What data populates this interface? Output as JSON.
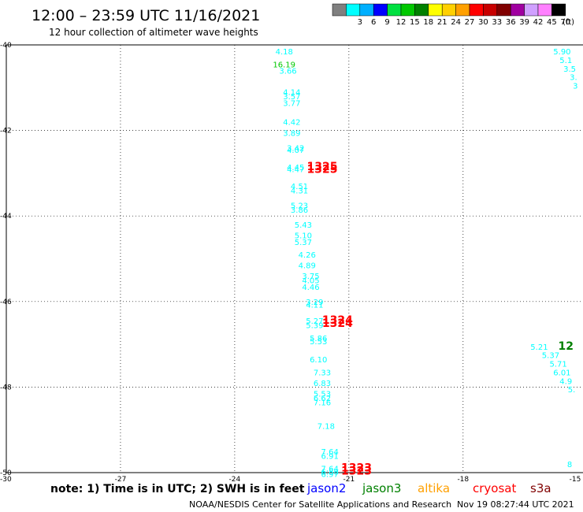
{
  "header": {
    "title": "12:00 – 23:59 UTC 11/16/2021",
    "subtitle": "12 hour collection of altimeter wave heights"
  },
  "colorbar": {
    "unit": "(ft)",
    "bins": [
      {
        "color": "#808080",
        "label": ""
      },
      {
        "color": "#00ffff",
        "label": "3"
      },
      {
        "color": "#00b0ff",
        "label": "6"
      },
      {
        "color": "#0000ff",
        "label": "9"
      },
      {
        "color": "#00e040",
        "label": "12"
      },
      {
        "color": "#00c800",
        "label": "15"
      },
      {
        "color": "#008000",
        "label": "18"
      },
      {
        "color": "#ffff00",
        "label": "21"
      },
      {
        "color": "#ffd000",
        "label": "24"
      },
      {
        "color": "#ffa000",
        "label": "27"
      },
      {
        "color": "#ff0000",
        "label": "30"
      },
      {
        "color": "#c80000",
        "label": "33"
      },
      {
        "color": "#800000",
        "label": "36"
      },
      {
        "color": "#a000a0",
        "label": "39"
      },
      {
        "color": "#d0a0ff",
        "label": "42"
      },
      {
        "color": "#ff80ff",
        "label": "45"
      },
      {
        "color": "#000000",
        "label": "70"
      }
    ]
  },
  "chart_data": {
    "type": "scatter",
    "title": "12:00 – 23:59 UTC 11/16/2021",
    "subtitle": "12 hour collection of altimeter wave heights",
    "xlim": [
      -30,
      -15
    ],
    "ylim": [
      -50,
      -40
    ],
    "x_ticks": [
      "-30",
      "-27",
      "-24",
      "-21",
      "-18",
      "-15"
    ],
    "y_ticks": [
      "-40",
      "-42",
      "-44",
      "-46",
      "-48",
      "-50"
    ],
    "grid": true,
    "wave_heights_ft": [
      {
        "lon": -22.7,
        "lat": -40.15,
        "text": "4.18",
        "color": "#00ffff"
      },
      {
        "lon": -22.7,
        "lat": -40.45,
        "text": "16.19",
        "color": "#00c800"
      },
      {
        "lon": -22.6,
        "lat": -40.6,
        "text": "3.66",
        "color": "#00ffff"
      },
      {
        "lon": -22.5,
        "lat": -41.1,
        "text": "4.14",
        "color": "#00ffff"
      },
      {
        "lon": -22.5,
        "lat": -41.2,
        "text": "3.57",
        "color": "#00ffff"
      },
      {
        "lon": -22.5,
        "lat": -41.35,
        "text": "3.77",
        "color": "#00ffff"
      },
      {
        "lon": -22.5,
        "lat": -41.8,
        "text": "4.42",
        "color": "#00ffff"
      },
      {
        "lon": -22.5,
        "lat": -42.05,
        "text": "3.89",
        "color": "#00ffff"
      },
      {
        "lon": -22.4,
        "lat": -42.4,
        "text": "3.42",
        "color": "#00ffff"
      },
      {
        "lon": -22.4,
        "lat": -42.45,
        "text": "4.07",
        "color": "#00ffff"
      },
      {
        "lon": -22.4,
        "lat": -42.85,
        "text": "4.45",
        "color": "#00ffff"
      },
      {
        "lon": -22.4,
        "lat": -42.9,
        "text": "4.47",
        "color": "#00ffff"
      },
      {
        "lon": -21.7,
        "lat": -42.85,
        "text": "1325",
        "color": "#ff0000",
        "time": true
      },
      {
        "lon": -21.7,
        "lat": -42.92,
        "text": "1325",
        "color": "#ff0000",
        "time": true
      },
      {
        "lon": -22.3,
        "lat": -43.3,
        "text": "4.51",
        "color": "#00ffff"
      },
      {
        "lon": -22.3,
        "lat": -43.4,
        "text": "4.31",
        "color": "#00ffff"
      },
      {
        "lon": -22.3,
        "lat": -43.75,
        "text": "5.23",
        "color": "#00ffff"
      },
      {
        "lon": -22.3,
        "lat": -43.85,
        "text": "3.86",
        "color": "#00ffff"
      },
      {
        "lon": -22.2,
        "lat": -44.2,
        "text": "5.43",
        "color": "#00ffff"
      },
      {
        "lon": -22.2,
        "lat": -44.45,
        "text": "5.10",
        "color": "#00ffff"
      },
      {
        "lon": -22.2,
        "lat": -44.6,
        "text": "5.37",
        "color": "#00ffff"
      },
      {
        "lon": -22.1,
        "lat": -44.9,
        "text": "4.26",
        "color": "#00ffff"
      },
      {
        "lon": -22.1,
        "lat": -45.15,
        "text": "4.89",
        "color": "#00ffff"
      },
      {
        "lon": -22.0,
        "lat": -45.4,
        "text": "3.75",
        "color": "#00ffff"
      },
      {
        "lon": -22.0,
        "lat": -45.5,
        "text": "4.05",
        "color": "#00ffff"
      },
      {
        "lon": -22.0,
        "lat": -45.65,
        "text": "4.46",
        "color": "#00ffff"
      },
      {
        "lon": -21.9,
        "lat": -46.0,
        "text": "3.29",
        "color": "#00ffff"
      },
      {
        "lon": -21.9,
        "lat": -46.07,
        "text": "4.11",
        "color": "#00ffff"
      },
      {
        "lon": -21.3,
        "lat": -46.45,
        "text": "1324",
        "color": "#ff0000",
        "time": true
      },
      {
        "lon": -21.3,
        "lat": -46.52,
        "text": "1324",
        "color": "#ff0000",
        "time": true
      },
      {
        "lon": -21.9,
        "lat": -46.45,
        "text": "5.27",
        "color": "#00ffff"
      },
      {
        "lon": -21.9,
        "lat": -46.55,
        "text": "5.39",
        "color": "#00ffff"
      },
      {
        "lon": -21.8,
        "lat": -46.85,
        "text": "5.86",
        "color": "#00ffff"
      },
      {
        "lon": -21.8,
        "lat": -46.92,
        "text": "5.53",
        "color": "#00ffff"
      },
      {
        "lon": -21.8,
        "lat": -47.35,
        "text": "6.10",
        "color": "#00ffff"
      },
      {
        "lon": -21.7,
        "lat": -47.65,
        "text": "7.33",
        "color": "#00ffff"
      },
      {
        "lon": -21.7,
        "lat": -47.9,
        "text": "6.83",
        "color": "#00ffff"
      },
      {
        "lon": -21.7,
        "lat": -48.15,
        "text": "5.53",
        "color": "#00ffff"
      },
      {
        "lon": -21.7,
        "lat": -48.25,
        "text": "6.62",
        "color": "#00ffff"
      },
      {
        "lon": -21.7,
        "lat": -48.35,
        "text": "7.16",
        "color": "#00ffff"
      },
      {
        "lon": -21.6,
        "lat": -48.9,
        "text": "7.18",
        "color": "#00ffff"
      },
      {
        "lon": -21.5,
        "lat": -49.5,
        "text": "7.64",
        "color": "#00ffff"
      },
      {
        "lon": -21.5,
        "lat": -49.6,
        "text": "6.91",
        "color": "#00ffff"
      },
      {
        "lon": -21.5,
        "lat": -49.9,
        "text": "7.64",
        "color": "#00ffff"
      },
      {
        "lon": -21.5,
        "lat": -49.97,
        "text": "6.88",
        "color": "#00ffff"
      },
      {
        "lon": -21.5,
        "lat": -50.03,
        "text": "6.97",
        "color": "#00ffff"
      },
      {
        "lon": -20.8,
        "lat": -49.9,
        "text": "1323",
        "color": "#ff0000",
        "time": true
      },
      {
        "lon": -20.8,
        "lat": -49.97,
        "text": "1323",
        "color": "#ff0000",
        "time": true
      },
      {
        "lon": -15.4,
        "lat": -40.15,
        "text": "5.90",
        "color": "#00ffff"
      },
      {
        "lon": -15.3,
        "lat": -40.35,
        "text": "5.1",
        "color": "#00ffff"
      },
      {
        "lon": -15.2,
        "lat": -40.55,
        "text": "3.5",
        "color": "#00ffff"
      },
      {
        "lon": -15.1,
        "lat": -40.75,
        "text": "3.",
        "color": "#00ffff"
      },
      {
        "lon": -15.05,
        "lat": -40.95,
        "text": "3",
        "color": "#00ffff"
      },
      {
        "lon": -16.0,
        "lat": -47.05,
        "text": "5.21",
        "color": "#00ffff"
      },
      {
        "lon": -15.7,
        "lat": -47.25,
        "text": "5.37",
        "color": "#00ffff"
      },
      {
        "lon": -15.5,
        "lat": -47.45,
        "text": "5.71",
        "color": "#00ffff"
      },
      {
        "lon": -15.4,
        "lat": -47.65,
        "text": "6.01",
        "color": "#00ffff"
      },
      {
        "lon": -15.3,
        "lat": -47.85,
        "text": "4.9",
        "color": "#00ffff"
      },
      {
        "lon": -15.15,
        "lat": -48.05,
        "text": "5.",
        "color": "#00ffff"
      },
      {
        "lon": -15.2,
        "lat": -49.8,
        "text": "8",
        "color": "#00ffff"
      },
      {
        "lon": -15.3,
        "lat": -47.05,
        "text": "12",
        "color": "#008000",
        "time": true
      }
    ]
  },
  "legend": {
    "note": "note:  1) Time is in UTC;  2) SWH is in feet",
    "satellites": [
      {
        "name": "jason2",
        "color": "#0000ff"
      },
      {
        "name": "jason3",
        "color": "#008000"
      },
      {
        "name": "altika",
        "color": "#ffa000"
      },
      {
        "name": "cryosat",
        "color": "#ff0000"
      },
      {
        "name": "s3a",
        "color": "#800000"
      }
    ]
  },
  "footer": {
    "credit": "NOAA/NESDIS Center for Satellite Applications and Research",
    "timestamp": "Nov 19 08:27:44 UTC 2021"
  }
}
